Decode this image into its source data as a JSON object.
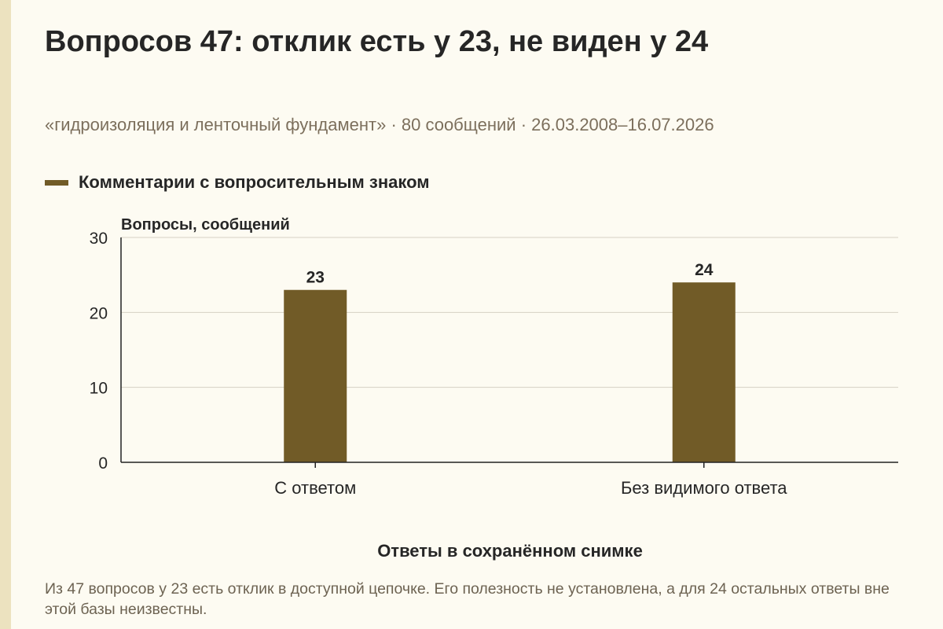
{
  "title": "Вопросов 47: отклик есть у 23, не виден у 24",
  "subtitle": "«гидроизоляция и ленточный фундамент» · 80 сообщений · 26.03.2008–16.07.2026",
  "note": "Из 47 вопросов у 23 есть отклик в доступной цепочке. Его полезность не установлена, а для 24 остальных ответы вне этой базы неизвестны.",
  "colors": {
    "bar": "#715b27",
    "grid": "#d6d1c4",
    "axis": "#222222"
  },
  "chart_data": {
    "type": "bar",
    "title": "",
    "categories": [
      "С ответом",
      "Без видимого ответа"
    ],
    "series": [
      {
        "name": "Комментарии с вопросительным знаком",
        "values": [
          23,
          24
        ]
      }
    ],
    "data_labels": [
      "23",
      "24"
    ],
    "xlabel": "Ответы в сохранённом снимке",
    "ylabel": "Вопросы, сообщений",
    "ylim": [
      0,
      30
    ],
    "yticks": [
      0,
      10,
      20,
      30
    ],
    "grid": true,
    "legend": "top-left"
  }
}
